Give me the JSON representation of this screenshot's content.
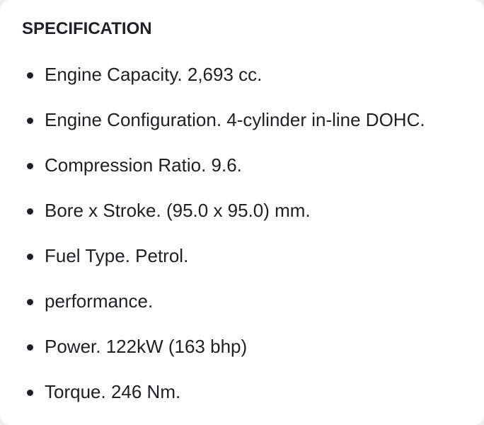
{
  "heading": "SPECIFICATION",
  "items": [
    {
      "label": "Engine Capacity. 2,693 cc."
    },
    {
      "label": "Engine Configuration. 4-cylinder in-line DOHC."
    },
    {
      "label": "Compression Ratio. 9.6."
    },
    {
      "label": "Bore x Stroke. (95.0 x 95.0) mm."
    },
    {
      "label": "Fuel Type. Petrol."
    },
    {
      "label": "performance."
    },
    {
      "label": "Power. 122kW (163 bhp)"
    },
    {
      "label": "Torque. 246 Nm."
    }
  ]
}
